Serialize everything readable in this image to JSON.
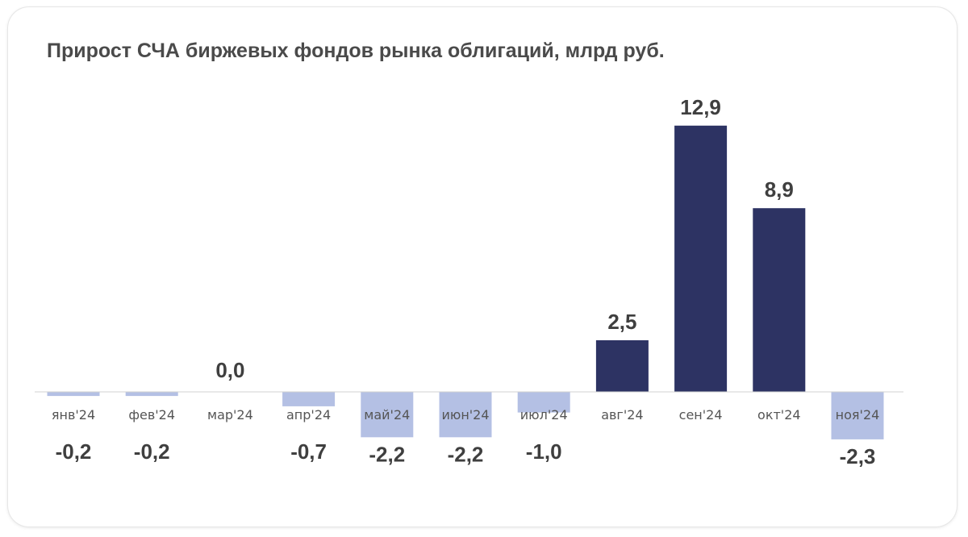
{
  "chart_data": {
    "type": "bar",
    "title": "Прирост СЧА биржевых фондов рынка облигаций, млрд руб.",
    "xlabel": "",
    "ylabel": "",
    "grid": false,
    "legend": "none",
    "ylim": [
      -2.8,
      14.5
    ],
    "categories": [
      "янв'24",
      "фев'24",
      "мар'24",
      "апр'24",
      "май'24",
      "июн'24",
      "июл'24",
      "авг'24",
      "сен'24",
      "окт'24",
      "ноя'24"
    ],
    "values": [
      -0.2,
      -0.2,
      0.0,
      -0.7,
      -2.2,
      -2.2,
      -1.0,
      2.5,
      12.9,
      8.9,
      -2.3
    ],
    "data_labels": [
      "-0,2",
      "-0,2",
      "0,0",
      "-0,7",
      "-2,2",
      "-2,2",
      "-1,0",
      "2,5",
      "12,9",
      "8,9",
      "-2,3"
    ],
    "colors": {
      "positive": "#2d3363",
      "negative": "#b4c0e4",
      "axis": "#d0d0d0"
    }
  }
}
